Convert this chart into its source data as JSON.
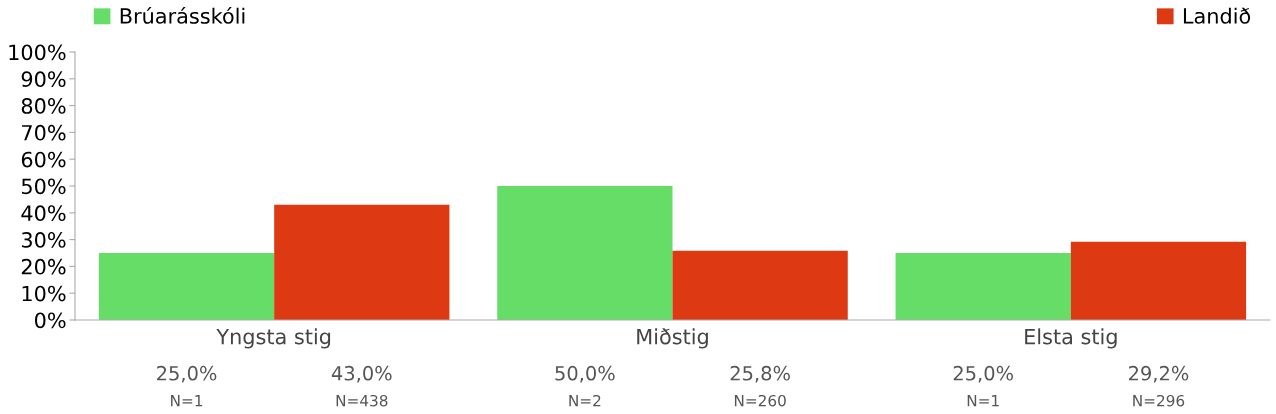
{
  "chart_data": {
    "type": "bar",
    "categories": [
      "Yngsta stig",
      "Miðstig",
      "Elsta stig"
    ],
    "series": [
      {
        "name": "Brúarásskóli",
        "color": "#66dd66",
        "values": [
          25.0,
          50.0,
          25.0
        ],
        "value_labels": [
          "25,0%",
          "50,0%",
          "25,0%"
        ]
      },
      {
        "name": "Landið",
        "color": "#dd3a14",
        "values": [
          43.0,
          25.8,
          29.2
        ],
        "value_labels": [
          "43,0%",
          "25,8%",
          "29,2%"
        ]
      }
    ],
    "annotations": [
      "N=1",
      "N=438",
      "N=2",
      "N=260",
      "N=1",
      "N=296"
    ],
    "ylim": [
      0,
      100
    ],
    "yticks": [
      {
        "value": 0,
        "label": "0%"
      },
      {
        "value": 10,
        "label": "10%"
      },
      {
        "value": 20,
        "label": "20%"
      },
      {
        "value": 30,
        "label": "30%"
      },
      {
        "value": 40,
        "label": "40%"
      },
      {
        "value": 50,
        "label": "50%"
      },
      {
        "value": 60,
        "label": "60%"
      },
      {
        "value": 70,
        "label": "70%"
      },
      {
        "value": 80,
        "label": "80%"
      },
      {
        "value": 90,
        "label": "90%"
      },
      {
        "value": 100,
        "label": "100%"
      }
    ],
    "grid": false,
    "legend": "top"
  }
}
